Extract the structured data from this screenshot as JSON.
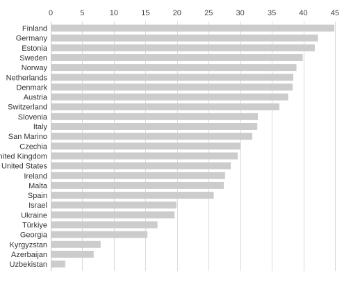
{
  "chart_data": {
    "type": "bar",
    "orientation": "horizontal",
    "title": "",
    "xlabel": "",
    "ylabel": "",
    "xlim": [
      0,
      45
    ],
    "x_ticks": [
      0,
      5,
      10,
      15,
      20,
      25,
      30,
      35,
      40,
      45
    ],
    "x_axis_position": "top",
    "grid": true,
    "legend": "none",
    "bar_color": "#cccccc",
    "categories": [
      "Finland",
      "Germany",
      "Estonia",
      "Sweden",
      "Norway",
      "Netherlands",
      "Denmark",
      "Austria",
      "Switzerland",
      "Slovenia",
      "Italy",
      "San Marino",
      "Czechia",
      "United Kingdom",
      "United States",
      "Ireland",
      "Malta",
      "Spain",
      "Israel",
      "Ukraine",
      "Türkiye",
      "Georgia",
      "Kyrgyzstan",
      "Azerbaijan",
      "Uzbekistan"
    ],
    "values": [
      44.9,
      42.3,
      41.8,
      39.9,
      38.9,
      38.4,
      38.3,
      37.6,
      36.2,
      32.8,
      32.7,
      31.9,
      30.0,
      29.6,
      28.5,
      27.6,
      27.4,
      25.8,
      19.9,
      19.6,
      16.9,
      15.3,
      7.9,
      6.8,
      2.3
    ]
  }
}
